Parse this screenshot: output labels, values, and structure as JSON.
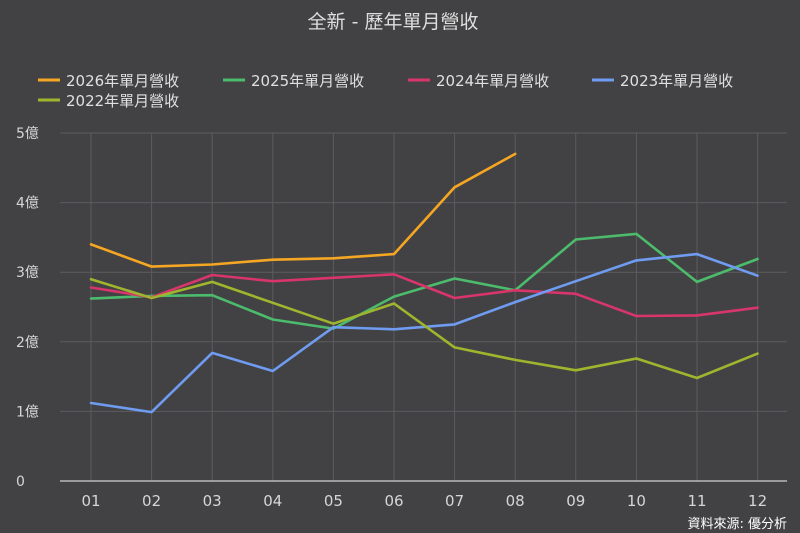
{
  "chart_data": {
    "type": "line",
    "title": "全新 - 歷年單月營收",
    "categories": [
      "01",
      "02",
      "03",
      "04",
      "05",
      "06",
      "07",
      "08",
      "09",
      "10",
      "11",
      "12"
    ],
    "ylim": [
      0,
      5
    ],
    "yticks": [
      {
        "value": 0,
        "label": "0"
      },
      {
        "value": 1,
        "label": "1億"
      },
      {
        "value": 2,
        "label": "2億"
      },
      {
        "value": 3,
        "label": "3億"
      },
      {
        "value": 4,
        "label": "4億"
      },
      {
        "value": 5,
        "label": "5億"
      }
    ],
    "grid": true,
    "legend_position": "top-left",
    "series": [
      {
        "name": "2026年單月營收",
        "color": "#f5a623",
        "values": [
          3.4,
          3.08,
          3.11,
          3.18,
          3.2,
          3.26,
          4.22,
          4.7,
          null,
          null,
          null,
          null
        ]
      },
      {
        "name": "2025年單月營收",
        "color": "#4cbb6c",
        "values": [
          2.62,
          2.66,
          2.67,
          2.32,
          2.19,
          2.65,
          2.91,
          2.74,
          3.47,
          3.55,
          2.86,
          3.19
        ]
      },
      {
        "name": "2024年單月營收",
        "color": "#d8356b",
        "values": [
          2.78,
          2.64,
          2.96,
          2.87,
          2.92,
          2.97,
          2.63,
          2.74,
          2.69,
          2.37,
          2.38,
          2.49
        ]
      },
      {
        "name": "2023年單月營收",
        "color": "#6f9cf0",
        "values": [
          1.12,
          0.99,
          1.84,
          1.58,
          2.21,
          2.18,
          2.25,
          2.57,
          2.87,
          3.17,
          3.26,
          2.95
        ]
      },
      {
        "name": "2022年單月營收",
        "color": "#9fb52d",
        "values": [
          2.9,
          2.63,
          2.86,
          2.56,
          2.26,
          2.55,
          1.92,
          1.74,
          1.59,
          1.76,
          1.48,
          1.83
        ]
      }
    ]
  },
  "source": "資料來源: 優分析"
}
